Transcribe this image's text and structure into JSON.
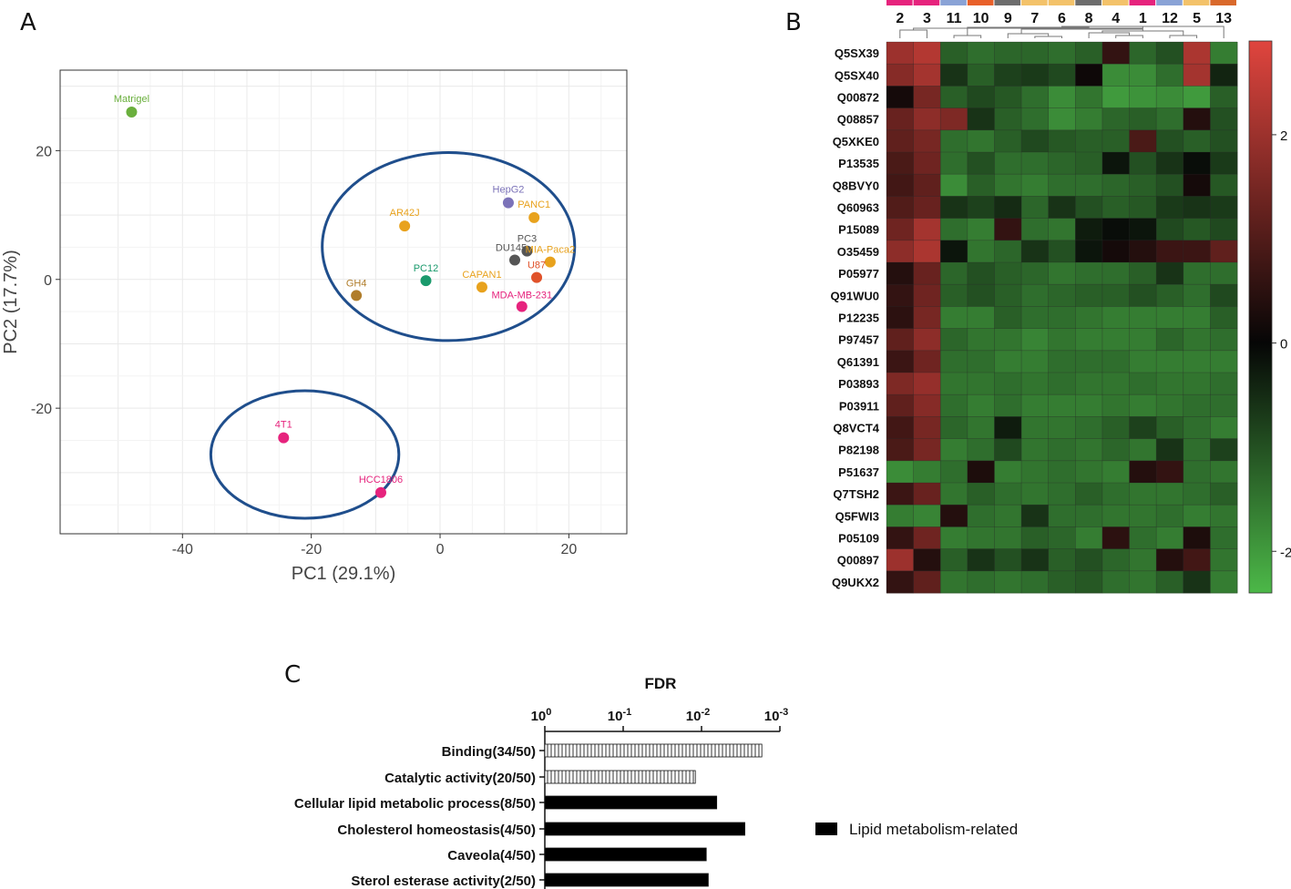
{
  "panel_labels": {
    "a": "A",
    "b": "B",
    "c": "C"
  },
  "colors": {
    "ellipse": "#1f4e8c",
    "heat_low": "#4cb848",
    "heat_mid": "#060606",
    "heat_high": "#e0453e",
    "bar_solid": "#000000",
    "bar_hatch": "#000000"
  },
  "chart_data": [
    {
      "type": "scatter",
      "panel": "A",
      "xlabel": "PC1 (29.1%)",
      "ylabel": "PC2 (17.7%)",
      "xlim": [
        -59,
        29
      ],
      "ylim": [
        -39.5,
        32.5
      ],
      "xticks": [
        -40,
        -20,
        0,
        20
      ],
      "yticks": [
        -20,
        0,
        20
      ],
      "grid": true,
      "points": [
        {
          "label": "Matrigel",
          "x": -47.9,
          "y": 26.0,
          "color": "#6aaf3d"
        },
        {
          "label": "HepG2",
          "x": 10.6,
          "y": 11.9,
          "color": "#7b72b8"
        },
        {
          "label": "PANC1",
          "x": 14.6,
          "y": 9.6,
          "color": "#e8a21d"
        },
        {
          "label": "AR42J",
          "x": -5.5,
          "y": 8.3,
          "color": "#e8a21d"
        },
        {
          "label": "PC3",
          "x": 13.5,
          "y": 4.4,
          "color": "#555555"
        },
        {
          "label": "DU145",
          "x": 11.6,
          "y": 3.0,
          "color": "#555555"
        },
        {
          "label": "MIA-Paca2",
          "x": 17.1,
          "y": 2.7,
          "color": "#e8a21d"
        },
        {
          "label": "U87",
          "x": 15.0,
          "y": 0.3,
          "color": "#e0522a"
        },
        {
          "label": "PC12",
          "x": -2.2,
          "y": -0.2,
          "color": "#1a9a6c"
        },
        {
          "label": "CAPAN1",
          "x": 6.5,
          "y": -1.2,
          "color": "#e8a21d"
        },
        {
          "label": "GH4",
          "x": -13.0,
          "y": -2.5,
          "color": "#b07d2b"
        },
        {
          "label": "MDA-MB-231",
          "x": 12.7,
          "y": -4.2,
          "color": "#e6237d"
        },
        {
          "label": "4T1",
          "x": -24.3,
          "y": -24.6,
          "color": "#e6237d"
        },
        {
          "label": "HCC1806",
          "x": -9.2,
          "y": -33.1,
          "color": "#e6237d"
        }
      ],
      "ellipses": [
        {
          "cx": 1.3,
          "cy": 5.1,
          "rx": 19.6,
          "ry": 14.6
        },
        {
          "cx": -21.0,
          "cy": -27.2,
          "rx": 14.6,
          "ry": 9.9
        }
      ]
    },
    {
      "type": "heatmap",
      "panel": "B",
      "columns": [
        "2",
        "3",
        "11",
        "10",
        "9",
        "7",
        "6",
        "8",
        "4",
        "1",
        "12",
        "5",
        "13"
      ],
      "column_colors": [
        "#e6237d",
        "#e6237d",
        "#8aa3d6",
        "#e8602a",
        "#6d6d6d",
        "#f3c26a",
        "#f3c26a",
        "#6d6d6d",
        "#f3c26a",
        "#e6237d",
        "#8aa3d6",
        "#f3c26a",
        "#d9692b"
      ],
      "rows": [
        "Q5SX39",
        "Q5SX40",
        "Q00872",
        "Q08857",
        "Q5XKE0",
        "P13535",
        "Q8BVY0",
        "Q60963",
        "P15089",
        "O35459",
        "P05977",
        "Q91WU0",
        "P12235",
        "P97457",
        "Q61391",
        "P03893",
        "P03911",
        "Q8VCT4",
        "P82198",
        "P51637",
        "Q7TSH2",
        "Q5FWI3",
        "P05109",
        "Q00897",
        "Q9UKX2"
      ],
      "colorbar": {
        "range": [
          -2.4,
          2.9
        ],
        "ticks": [
          2,
          0,
          -2
        ]
      },
      "values": [
        [
          2.0,
          2.3,
          -1.2,
          -1.4,
          -1.3,
          -1.3,
          -1.4,
          -1.2,
          0.6,
          -1.3,
          -1.0,
          2.2,
          -1.6
        ],
        [
          1.7,
          2.1,
          -0.6,
          -1.2,
          -0.8,
          -0.7,
          -0.9,
          0.1,
          -1.8,
          -1.8,
          -1.4,
          2.1,
          -0.4
        ],
        [
          0.2,
          1.5,
          -1.2,
          -0.9,
          -1.1,
          -1.4,
          -1.8,
          -1.5,
          -2.0,
          -1.9,
          -1.8,
          -2.0,
          -1.2
        ],
        [
          1.3,
          1.8,
          1.6,
          -0.6,
          -1.2,
          -1.4,
          -1.8,
          -1.6,
          -1.3,
          -1.2,
          -1.4,
          0.4,
          -1.0
        ],
        [
          1.2,
          1.5,
          -1.4,
          -1.5,
          -1.2,
          -0.9,
          -1.1,
          -1.2,
          -1.2,
          0.9,
          -1.0,
          -1.2,
          -1.0
        ],
        [
          0.9,
          1.4,
          -1.4,
          -1.0,
          -1.4,
          -1.4,
          -1.3,
          -1.2,
          -0.2,
          -1.0,
          -0.6,
          -0.1,
          -0.7
        ],
        [
          0.8,
          1.2,
          -1.8,
          -1.2,
          -1.5,
          -1.6,
          -1.4,
          -1.4,
          -1.3,
          -1.2,
          -1.0,
          0.2,
          -1.1
        ],
        [
          1.0,
          1.3,
          -0.6,
          -0.8,
          -0.5,
          -1.3,
          -0.6,
          -1.0,
          -1.2,
          -1.1,
          -0.7,
          -0.6,
          -0.7
        ],
        [
          1.4,
          2.1,
          -1.4,
          -1.6,
          0.6,
          -1.4,
          -1.5,
          -0.3,
          -0.1,
          -0.2,
          -0.9,
          -1.1,
          -0.9
        ],
        [
          1.8,
          2.2,
          -0.2,
          -1.5,
          -1.3,
          -0.6,
          -1.0,
          -0.2,
          0.2,
          0.4,
          0.7,
          0.7,
          1.2
        ],
        [
          0.4,
          1.3,
          -1.3,
          -1.0,
          -1.2,
          -1.3,
          -1.5,
          -1.4,
          -1.4,
          -1.2,
          -0.6,
          -1.4,
          -1.4
        ],
        [
          0.6,
          1.4,
          -1.2,
          -1.0,
          -1.2,
          -1.4,
          -1.3,
          -1.2,
          -1.2,
          -1.0,
          -1.2,
          -1.4,
          -0.9
        ],
        [
          0.5,
          1.5,
          -1.6,
          -1.6,
          -1.2,
          -1.4,
          -1.4,
          -1.5,
          -1.6,
          -1.6,
          -1.6,
          -1.6,
          -1.2
        ],
        [
          1.2,
          1.8,
          -1.3,
          -1.5,
          -1.5,
          -1.7,
          -1.5,
          -1.6,
          -1.6,
          -1.6,
          -1.3,
          -1.5,
          -1.4
        ],
        [
          0.7,
          1.4,
          -1.4,
          -1.4,
          -1.6,
          -1.6,
          -1.4,
          -1.4,
          -1.4,
          -1.6,
          -1.6,
          -1.6,
          -1.6
        ],
        [
          1.6,
          1.9,
          -1.5,
          -1.5,
          -1.4,
          -1.5,
          -1.4,
          -1.5,
          -1.5,
          -1.4,
          -1.5,
          -1.5,
          -1.4
        ],
        [
          1.2,
          1.7,
          -1.4,
          -1.6,
          -1.4,
          -1.6,
          -1.6,
          -1.6,
          -1.5,
          -1.6,
          -1.5,
          -1.4,
          -1.4
        ],
        [
          0.8,
          1.5,
          -1.3,
          -1.5,
          -0.3,
          -1.5,
          -1.5,
          -1.4,
          -1.2,
          -0.8,
          -1.2,
          -1.4,
          -1.6
        ],
        [
          0.9,
          1.5,
          -1.6,
          -1.4,
          -0.9,
          -1.5,
          -1.4,
          -1.5,
          -1.3,
          -1.5,
          -0.6,
          -1.4,
          -0.8
        ],
        [
          -1.8,
          -1.6,
          -1.4,
          0.3,
          -1.6,
          -1.5,
          -1.4,
          -1.5,
          -1.6,
          0.4,
          0.6,
          -1.4,
          -1.5
        ],
        [
          0.7,
          1.3,
          -1.5,
          -1.2,
          -1.4,
          -1.5,
          -1.4,
          -1.2,
          -1.4,
          -1.5,
          -1.5,
          -1.4,
          -1.2
        ],
        [
          -1.6,
          -1.7,
          0.4,
          -1.4,
          -1.5,
          -0.6,
          -1.4,
          -1.4,
          -1.5,
          -1.5,
          -1.4,
          -1.6,
          -1.5
        ],
        [
          0.6,
          1.4,
          -1.6,
          -1.5,
          -1.5,
          -1.2,
          -1.3,
          -1.6,
          0.5,
          -1.4,
          -1.6,
          0.3,
          -1.4
        ],
        [
          2.0,
          0.4,
          -1.2,
          -0.6,
          -1.0,
          -0.6,
          -1.2,
          -1.0,
          -1.3,
          -1.5,
          0.4,
          0.8,
          -1.5
        ],
        [
          0.6,
          1.2,
          -1.5,
          -1.4,
          -1.5,
          -1.4,
          -1.2,
          -1.1,
          -1.4,
          -1.5,
          -1.2,
          -0.6,
          -1.6
        ]
      ]
    },
    {
      "type": "bar",
      "panel": "C",
      "title": "FDR",
      "orientation": "horizontal",
      "scale": "log",
      "xlim": [
        1,
        0.001
      ],
      "ticks": [
        {
          "value": 1,
          "base": "10",
          "exp": "0"
        },
        {
          "value": 0.1,
          "base": "10",
          "exp": "-1"
        },
        {
          "value": 0.01,
          "base": "10",
          "exp": "-2"
        },
        {
          "value": 0.001,
          "base": "10",
          "exp": "-3"
        }
      ],
      "categories": [
        "Binding(34/50)",
        "Catalytic activity(20/50)",
        "Cellular lipid metabolic process(8/50)",
        "Cholesterol homeostasis(4/50)",
        "Caveola(4/50)",
        "Sterol esterase activity(2/50)"
      ],
      "values": [
        0.0017,
        0.012,
        0.0064,
        0.0028,
        0.0087,
        0.0082
      ],
      "styles": [
        "hatched",
        "hatched",
        "solid",
        "solid",
        "solid",
        "solid"
      ],
      "legend": [
        {
          "label": "Lipid metabolism-related",
          "style": "solid"
        }
      ]
    }
  ]
}
